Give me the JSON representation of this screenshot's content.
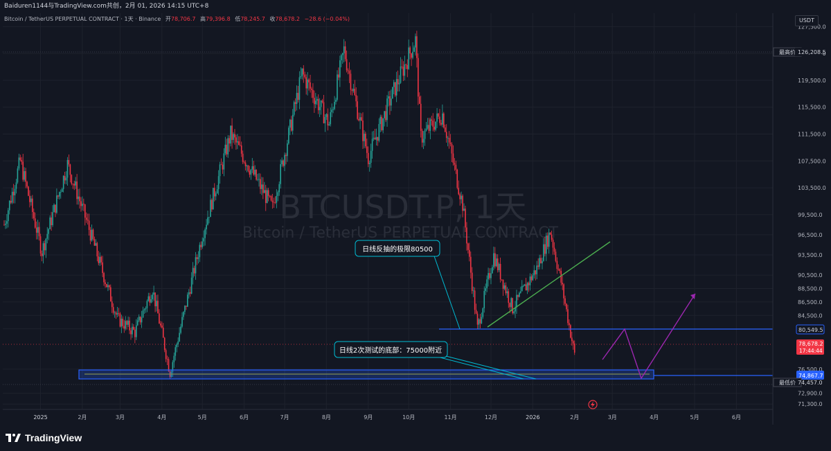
{
  "header": {
    "publisher_line": "Baiduren1144与TradingView.com共创，2月 01, 2026 14:15 UTC+8"
  },
  "legend": {
    "instrument": "Bitcoin / TetherUS PERPETUAL CONTRACT · 1天 · Binance",
    "open_label": "开",
    "open_value": "78,706.7",
    "high_label": "高",
    "high_value": "79,396.8",
    "low_label": "低",
    "low_value": "78,245.7",
    "close_label": "收",
    "close_value": "78,678.2",
    "change": "−28.6 (−0.04%)"
  },
  "currency": "USDT",
  "watermark": {
    "symbol": "BTCUSDT.P, 1天",
    "description": "Bitcoin / TetherUS PERPETUAL CONTRACT"
  },
  "annotations": {
    "upper_callout": "日线反抽的极限80500",
    "lower_callout": "日线2次测试的底部：75000附近"
  },
  "price_labels": {
    "high_tag_title": "最高价",
    "high_tag_value": "126,208.5",
    "low_tag_title": "最低价",
    "low_tag_value": "74,457.0",
    "resistance_value": "80,549.5",
    "support_value": "74,867.7",
    "last_value": "78,678.2",
    "countdown": "17:44:44"
  },
  "brand": "TradingView",
  "colors": {
    "background": "#131722",
    "up": "#26a69a",
    "down": "#f23645",
    "line_blue": "#2962ff",
    "trend_green": "#4caf50",
    "projection_purple": "#9c27b0",
    "callout_border": "#00bcd4"
  },
  "chart_data": {
    "type": "candlestick",
    "title": "BTCUSDT.P, 1天",
    "y_axis_ticks": [
      "127,500.0",
      "123,500.0",
      "119,500.0",
      "115,500.0",
      "111,500.0",
      "107,500.0",
      "103,500.0",
      "99,500.0",
      "96,500.0",
      "93,500.0",
      "90,500.0",
      "88,500.0",
      "86,500.0",
      "84,500.0",
      "82,500.0",
      "76,500.0",
      "72,900.0",
      "71,300.0"
    ],
    "x_axis_ticks": [
      "2025",
      "2月",
      "3月",
      "4月",
      "5月",
      "6月",
      "7月",
      "8月",
      "9月",
      "10月",
      "11月",
      "12月",
      "2026",
      "2月",
      "3月",
      "4月",
      "5月",
      "6月"
    ],
    "ylim": [
      70500,
      129500
    ],
    "x_range": [
      "2024-12-04",
      "2026-06-28"
    ],
    "approx_close_path": [
      {
        "date": "2024-12-05",
        "price": 98000
      },
      {
        "date": "2024-12-17",
        "price": 107500
      },
      {
        "date": "2025-01-02",
        "price": 94000
      },
      {
        "date": "2025-01-21",
        "price": 107000
      },
      {
        "date": "2025-02-05",
        "price": 98000
      },
      {
        "date": "2025-02-27",
        "price": 84000
      },
      {
        "date": "2025-03-12",
        "price": 82000
      },
      {
        "date": "2025-03-25",
        "price": 88500
      },
      {
        "date": "2025-04-07",
        "price": 76000
      },
      {
        "date": "2025-05-01",
        "price": 96500
      },
      {
        "date": "2025-05-22",
        "price": 111500
      },
      {
        "date": "2025-06-22",
        "price": 100500
      },
      {
        "date": "2025-07-14",
        "price": 120500
      },
      {
        "date": "2025-08-03",
        "price": 113000
      },
      {
        "date": "2025-08-14",
        "price": 124000
      },
      {
        "date": "2025-09-01",
        "price": 108000
      },
      {
        "date": "2025-09-18",
        "price": 117000
      },
      {
        "date": "2025-10-06",
        "price": 125500
      },
      {
        "date": "2025-10-10",
        "price": 111000
      },
      {
        "date": "2025-10-26",
        "price": 114500
      },
      {
        "date": "2025-11-10",
        "price": 101000
      },
      {
        "date": "2025-11-21",
        "price": 82500
      },
      {
        "date": "2025-12-03",
        "price": 93500
      },
      {
        "date": "2025-12-17",
        "price": 85500
      },
      {
        "date": "2026-01-04",
        "price": 91500
      },
      {
        "date": "2026-01-14",
        "price": 97000
      },
      {
        "date": "2026-01-22",
        "price": 89500
      },
      {
        "date": "2026-02-01",
        "price": 78678.2
      }
    ],
    "levels": {
      "highest": 126208.5,
      "lowest": 74457.0,
      "resistance": 80549.5,
      "support": 74867.7,
      "last": 78678.2
    },
    "grid": true
  }
}
